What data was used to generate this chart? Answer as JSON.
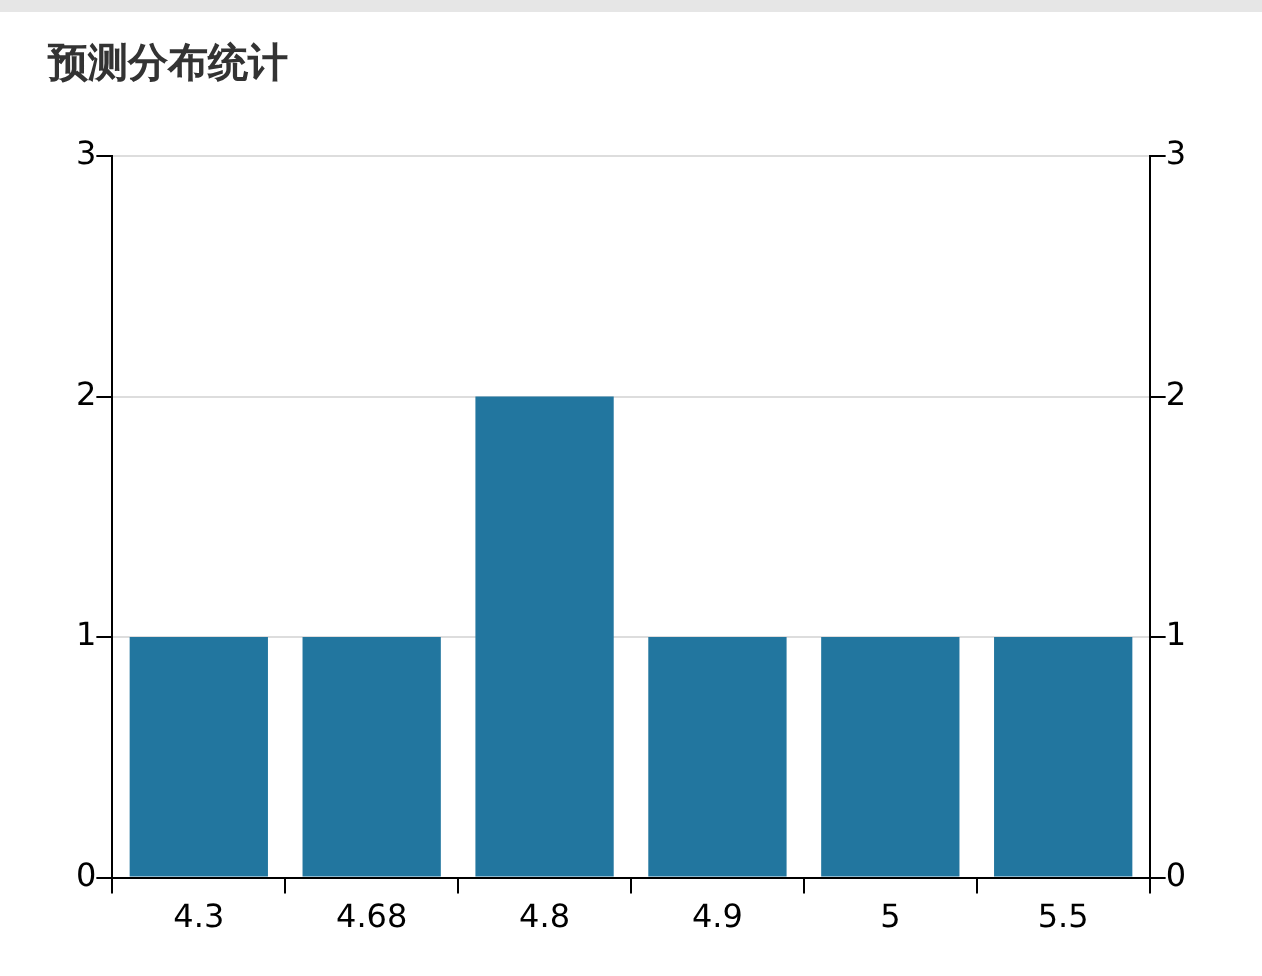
{
  "chart_data": {
    "type": "bar",
    "title": "预测分布统计",
    "categories": [
      "4.3",
      "4.68",
      "4.8",
      "4.9",
      "5",
      "5.5"
    ],
    "values": [
      1,
      1,
      2,
      1,
      1,
      1
    ],
    "color": "#22769f",
    "ylim": [
      0,
      3
    ],
    "yticks": [
      0,
      1,
      2,
      3
    ],
    "y2lim": [
      0,
      3
    ],
    "y2ticks": [
      0,
      1,
      2,
      3
    ],
    "grid": "y",
    "legend": false
  }
}
